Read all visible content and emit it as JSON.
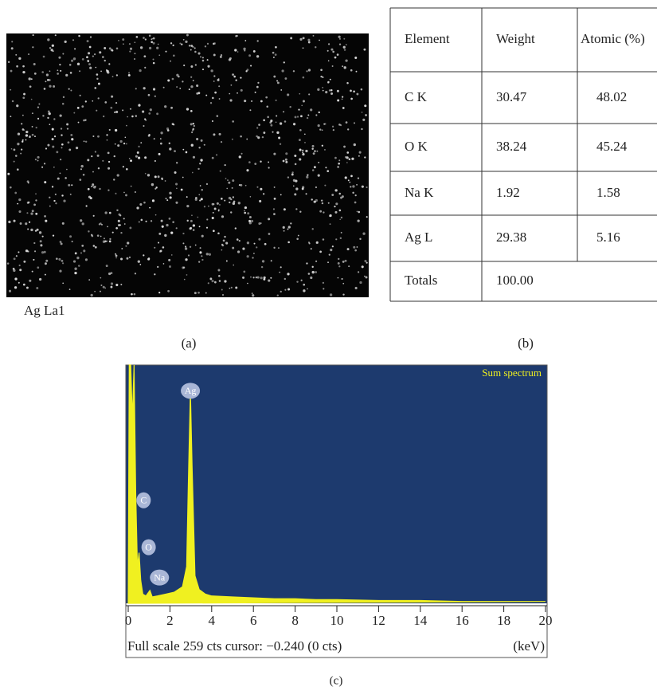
{
  "panel_a": {
    "label": "Ag La1",
    "caption": "(a)"
  },
  "panel_b": {
    "caption": "(b)",
    "table": {
      "header": [
        "Element",
        "Weight",
        "Atomic (%)"
      ],
      "rows": [
        [
          "C K",
          "30.47",
          "48.02"
        ],
        [
          "O K",
          "38.24",
          "45.24"
        ],
        [
          "Na K",
          "1.92",
          "1.58"
        ],
        [
          "Ag L",
          "29.38",
          "5.16"
        ],
        [
          "Totals",
          "100.00"
        ]
      ]
    }
  },
  "chart_data": {
    "type": "area",
    "legend_label": "Sum spectrum",
    "footer": "Full scale 259 cts cursor: −0.240 (0 cts)",
    "x_unit": "(keV)",
    "caption": "(c)",
    "color": "#f0f020",
    "background": "#1d3a6e",
    "x": [
      0,
      0.05,
      0.12,
      0.2,
      0.28,
      0.36,
      0.44,
      0.52,
      0.6,
      0.7,
      0.85,
      1.04,
      1.15,
      1.4,
      1.8,
      2.2,
      2.6,
      2.8,
      2.9,
      2.98,
      3.06,
      3.2,
      3.4,
      3.7,
      4,
      5,
      6,
      7,
      8,
      9,
      10,
      12,
      14,
      16,
      18,
      20
    ],
    "values": [
      0,
      259,
      259,
      200,
      259,
      120,
      40,
      55,
      25,
      10,
      8,
      14,
      7,
      8,
      10,
      12,
      18,
      40,
      150,
      231,
      150,
      30,
      15,
      10,
      8,
      7,
      6,
      5,
      5,
      4,
      4,
      3,
      3,
      2,
      2,
      2
    ],
    "xlim": [
      0,
      20
    ],
    "ylim": [
      0,
      259
    ],
    "xticks": [
      0,
      2,
      4,
      6,
      8,
      10,
      12,
      14,
      16,
      18,
      20
    ],
    "annotations": [
      {
        "text": "Ag",
        "x": 2.98,
        "y": 231
      },
      {
        "text": "C",
        "x": 0.28,
        "y": 112
      },
      {
        "text": "O",
        "x": 0.52,
        "y": 61
      },
      {
        "text": "Na",
        "x": 1.04,
        "y": 28
      }
    ]
  }
}
